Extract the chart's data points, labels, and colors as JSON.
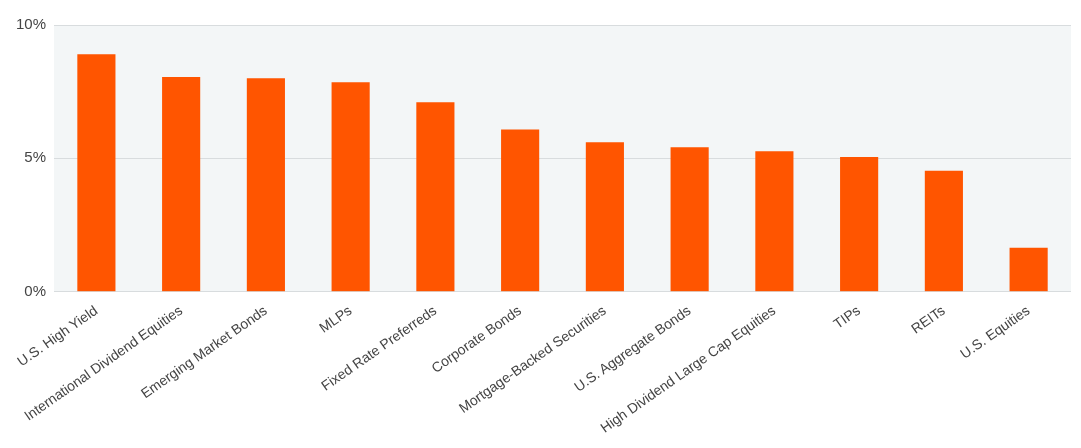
{
  "chart_data": {
    "type": "bar",
    "categories": [
      "U.S. High Yield",
      "International Dividend Equities",
      "Emerging Market Bonds",
      "MLPs",
      "Fixed Rate Preferreds",
      "Corporate Bonds",
      "Mortgage-Backed Securities",
      "U.S. Aggregate Bonds",
      "High Dividend Large Cap Equities",
      "TIPs",
      "REITs",
      "U.S. Equities"
    ],
    "values": [
      8.9,
      8.05,
      8.0,
      7.85,
      7.1,
      6.08,
      5.6,
      5.42,
      5.27,
      5.05,
      4.54,
      1.65
    ],
    "color": "#ff5500",
    "ylim": [
      0,
      10
    ],
    "yticks": [
      {
        "value": 0,
        "label": "0%"
      },
      {
        "value": 5,
        "label": "5%"
      },
      {
        "value": 10,
        "label": "10%"
      }
    ],
    "grid": "y",
    "legend": false
  }
}
